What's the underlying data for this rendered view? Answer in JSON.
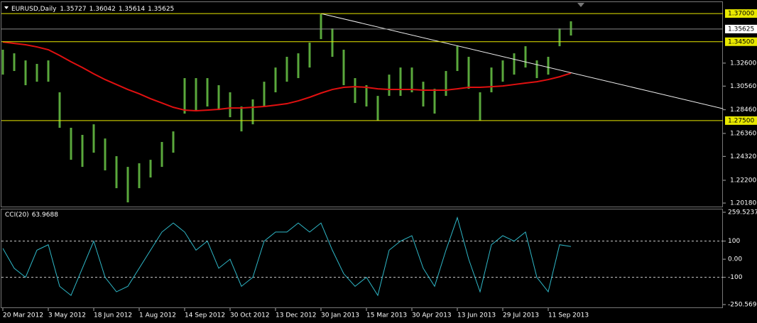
{
  "chart_data": [
    {
      "type": "ohlc",
      "title": "EURUSD,Daily",
      "quote": [
        1.35727,
        1.36042,
        1.35614,
        1.35625
      ],
      "categories": [
        "20 Mar 2012",
        null,
        null,
        null,
        "3 May 2012",
        null,
        null,
        null,
        "18 Jun 2012",
        null,
        null,
        null,
        "1 Aug 2012",
        null,
        null,
        null,
        "14 Sep 2012",
        null,
        null,
        null,
        "30 Oct 2012",
        null,
        null,
        null,
        "13 Dec 2012",
        null,
        null,
        null,
        "30 Jan 2013",
        null,
        null,
        null,
        "15 Mar 2013",
        null,
        null,
        null,
        "30 Apr 2013",
        null,
        null,
        null,
        "13 Jun 2013",
        null,
        null,
        null,
        "29 Jul 2013",
        null,
        null,
        null,
        "11 Sep 2013",
        null,
        null
      ],
      "high": [
        1.3379,
        1.3347,
        1.3284,
        1.3253,
        1.3284,
        1.3001,
        1.2686,
        1.2623,
        1.2717,
        1.2591,
        1.2434,
        1.2339,
        1.2371,
        1.2402,
        1.256,
        1.2654,
        1.3127,
        1.3127,
        1.3127,
        1.3064,
        1.3001,
        1.2875,
        1.2938,
        1.3095,
        1.3221,
        1.3316,
        1.3347,
        1.3442,
        1.3694,
        1.3568,
        1.3379,
        1.3127,
        1.3064,
        1.2969,
        1.3158,
        1.3221,
        1.3221,
        1.3095,
        1.3032,
        1.319,
        1.341,
        1.3316,
        1.3001,
        1.3221,
        1.3284,
        1.3347,
        1.341,
        1.3284,
        1.3316,
        1.3568,
        1.3631
      ],
      "low": [
        1.3158,
        1.319,
        1.3064,
        1.3095,
        1.3095,
        1.2686,
        1.2402,
        1.2339,
        1.2465,
        1.2308,
        1.215,
        1.2024,
        1.215,
        1.2245,
        1.2339,
        1.2465,
        1.2812,
        1.2843,
        1.2875,
        1.2843,
        1.278,
        1.2654,
        1.2717,
        1.2875,
        1.3001,
        1.3095,
        1.3127,
        1.3221,
        1.3473,
        1.3316,
        1.3064,
        1.2906,
        1.2875,
        1.2749,
        1.2969,
        1.2969,
        1.3001,
        1.2875,
        1.2812,
        1.2969,
        1.319,
        1.3032,
        1.2749,
        1.3001,
        1.3095,
        1.3158,
        1.3221,
        1.3127,
        1.3158,
        1.341,
        1.3505
      ],
      "color": "#5aa83c",
      "ma": [
        1.3448,
        1.3435,
        1.3423,
        1.3404,
        1.3379,
        1.3328,
        1.3272,
        1.3221,
        1.3165,
        1.3114,
        1.307,
        1.3026,
        1.2988,
        1.2944,
        1.2906,
        1.2868,
        1.2843,
        1.2837,
        1.2843,
        1.285,
        1.2862,
        1.2862,
        1.2868,
        1.2875,
        1.2887,
        1.29,
        1.2925,
        1.2957,
        1.2994,
        1.3026,
        1.3045,
        1.3051,
        1.3045,
        1.3032,
        1.3026,
        1.3026,
        1.3026,
        1.302,
        1.302,
        1.302,
        1.3032,
        1.3045,
        1.3045,
        1.3051,
        1.3057,
        1.307,
        1.3083,
        1.3095,
        1.3114,
        1.3139,
        1.3171
      ],
      "ma_color": "#e01010",
      "trendline": {
        "x": [
          28,
          63.4
        ],
        "y": [
          1.37,
          1.2855
        ],
        "color": "#f0f0f0"
      },
      "ylim": [
        1.1993,
        1.3795
      ],
      "yticks": [
        {
          "value": 1.326,
          "label": "1.32600"
        },
        {
          "value": 1.3056,
          "label": "1.30560"
        },
        {
          "value": 1.2846,
          "label": "1.28460"
        },
        {
          "value": 1.2636,
          "label": "1.26360"
        },
        {
          "value": 1.2432,
          "label": "1.24320"
        },
        {
          "value": 1.222,
          "label": "1.22200"
        },
        {
          "value": 1.2018,
          "label": "1.20180"
        }
      ],
      "levels": [
        {
          "value": 1.37,
          "label": "1.37000"
        },
        {
          "value": 1.345,
          "label": "1.34500"
        },
        {
          "value": 1.275,
          "label": "1.27500"
        }
      ],
      "level_color": "#e8e800",
      "last_price": {
        "value": 1.35625,
        "label": "1.35625"
      }
    },
    {
      "type": "line",
      "title": "CCI(20)",
      "last": 63.9688,
      "values": [
        60,
        -50,
        -100,
        50,
        80,
        -150,
        -200,
        -50,
        100,
        -100,
        -180,
        -150,
        -50,
        50,
        150,
        200,
        150,
        50,
        100,
        -50,
        0,
        -150,
        -100,
        100,
        150,
        150,
        200,
        150,
        200,
        50,
        -80,
        -150,
        -100,
        -200,
        50,
        100,
        130,
        -50,
        -150,
        50,
        230,
        0,
        -180,
        80,
        130,
        100,
        150,
        -100,
        -180,
        80,
        70
      ],
      "color": "#2fb8c8",
      "ylim": [
        -250.569,
        259.5237
      ],
      "yticks": [
        259.5237,
        100,
        {
          "value": 0,
          "label": "0.00"
        },
        -100,
        -250.569
      ],
      "levels": [
        100,
        -100
      ]
    }
  ]
}
